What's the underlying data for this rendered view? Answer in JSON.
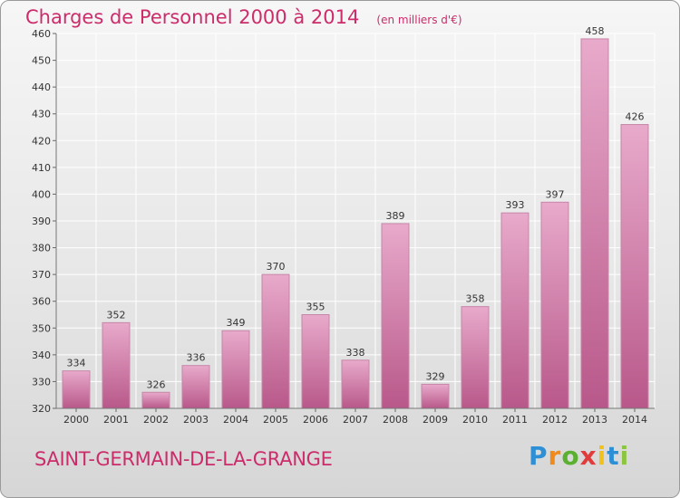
{
  "chart_data": {
    "type": "bar",
    "title": "Charges de Personnel 2000 à 2014",
    "subtitle": "(en milliers d'€)",
    "categories": [
      "2000",
      "2001",
      "2002",
      "2003",
      "2004",
      "2005",
      "2006",
      "2007",
      "2008",
      "2009",
      "2010",
      "2011",
      "2012",
      "2013",
      "2014"
    ],
    "values": [
      334,
      352,
      326,
      336,
      349,
      370,
      355,
      338,
      389,
      329,
      358,
      393,
      397,
      458,
      426
    ],
    "ylim": [
      320,
      460
    ],
    "yticks": [
      320,
      330,
      340,
      350,
      360,
      370,
      380,
      390,
      400,
      410,
      420,
      430,
      440,
      450,
      460
    ],
    "grid": true,
    "bar_color": "#cf6f9f",
    "bar_gradient": [
      "#e8aacb",
      "#b8588a"
    ]
  },
  "commune": "SAINT-GERMAIN-DE-LA-GRANGE",
  "logo_text": "Proxiti",
  "colors": {
    "title": "#cc2c6a",
    "commune": "#cc2c6a"
  }
}
